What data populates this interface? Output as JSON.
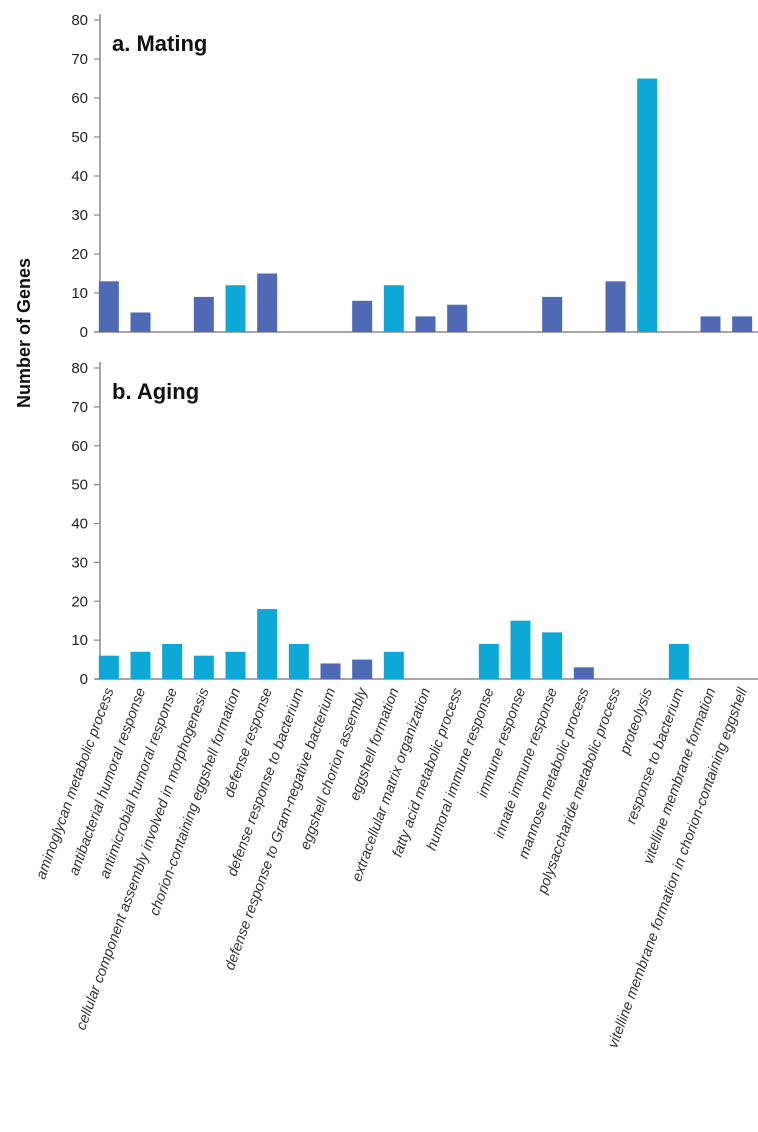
{
  "chart_data": {
    "type": "bar",
    "ylabel": "Number of Genes",
    "ylim": [
      0,
      80
    ],
    "yticks": [
      0,
      10,
      20,
      30,
      40,
      50,
      60,
      70,
      80
    ],
    "colors": {
      "dark": "#4f6ab5",
      "light": "#0ea8d6"
    },
    "categories": [
      "aminoglycan metabolic process",
      "antibacterial humoral response",
      "antimicrobial humoral response",
      "cellular component assembly involved in morphogenesis",
      "chorion-containing eggshell formation",
      "defense response",
      "defense response to bacterium",
      "defense response to Gram-negative bacterium",
      "eggshell chorion assembly",
      "eggshell formation",
      "extracellular matrix organization",
      "fatty acid metabolic process",
      "humoral immune response",
      "immune response",
      "innate immune response",
      "mannose metabolic process",
      "polysaccharide metabolic process",
      "proteolysis",
      "response to bacterium",
      "vitelline membrane formation",
      "vitelline membrane formation in chorion-containing eggshell"
    ],
    "panels": [
      {
        "title": "a. Mating",
        "values": [
          13,
          5,
          0,
          9,
          12,
          15,
          0,
          0,
          8,
          12,
          4,
          7,
          0,
          0,
          9,
          0,
          13,
          65,
          0,
          4,
          4
        ],
        "shades": [
          "dark",
          "dark",
          "dark",
          "dark",
          "light",
          "dark",
          "dark",
          "dark",
          "dark",
          "light",
          "dark",
          "dark",
          "dark",
          "dark",
          "dark",
          "dark",
          "dark",
          "light",
          "dark",
          "dark",
          "dark"
        ]
      },
      {
        "title": "b. Aging",
        "values": [
          6,
          7,
          9,
          6,
          7,
          18,
          9,
          4,
          5,
          7,
          0,
          0,
          9,
          15,
          12,
          3,
          0,
          0,
          9,
          0,
          0
        ],
        "shades": [
          "light",
          "light",
          "light",
          "light",
          "light",
          "light",
          "light",
          "dark",
          "dark",
          "light",
          "light",
          "light",
          "light",
          "light",
          "light",
          "dark",
          "light",
          "light",
          "light",
          "light",
          "light"
        ]
      }
    ]
  }
}
